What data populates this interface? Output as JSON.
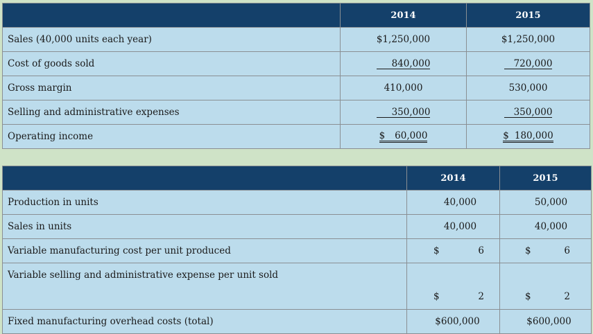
{
  "income": {
    "headers": [
      "",
      "2014",
      "2015"
    ],
    "rows": [
      {
        "label": "Sales (40,000 units each year)",
        "v2014": "$1,250,000",
        "v2015": "$1,250,000"
      },
      {
        "label": "Cost of goods sold",
        "v2014": "840,000",
        "v2015": "720,000"
      },
      {
        "label": "Gross margin",
        "v2014": "410,000",
        "v2015": "530,000"
      },
      {
        "label": "Selling and administrative expenses",
        "v2014": "350,000",
        "v2015": "350,000"
      },
      {
        "label": "Operating income",
        "v2014_sym": "$",
        "v2014": "60,000",
        "v2015_sym": "$",
        "v2015": "180,000"
      }
    ]
  },
  "production": {
    "headers": [
      "",
      "2014",
      "2015"
    ],
    "rows": [
      {
        "label": "Production in units",
        "v2014": "40,000",
        "v2015": "50,000"
      },
      {
        "label": "Sales in units",
        "v2014": "40,000",
        "v2015": "40,000"
      },
      {
        "label": "Variable manufacturing cost per unit produced",
        "v2014_sym": "$",
        "v2014": "6",
        "v2015_sym": "$",
        "v2015": "6"
      },
      {
        "label": "Variable selling and administrative expense per unit sold",
        "v2014_sym": "$",
        "v2014": "2",
        "v2015_sym": "$",
        "v2015": "2"
      },
      {
        "label": "Fixed manufacturing overhead costs (total)",
        "v2014": "$600,000",
        "v2015": "$600,000"
      }
    ]
  }
}
